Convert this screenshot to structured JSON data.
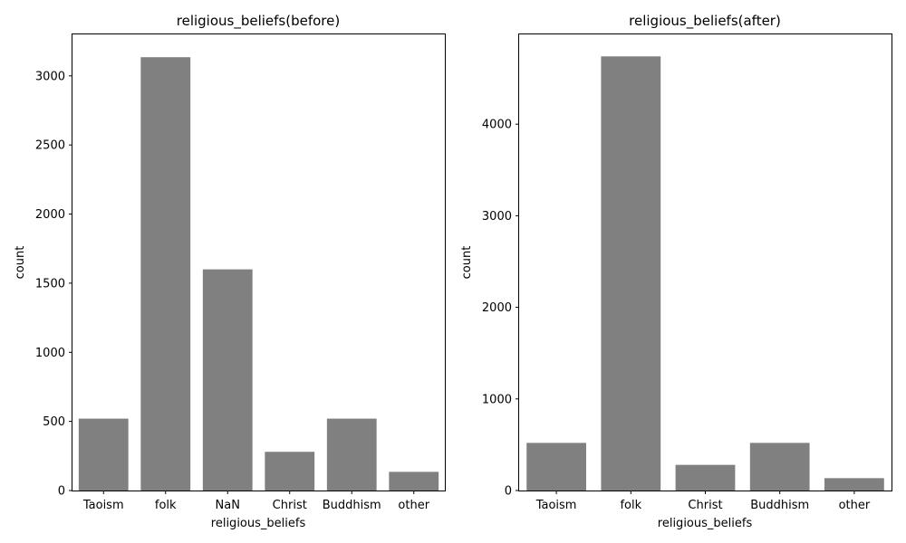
{
  "chart_data": [
    {
      "type": "bar",
      "title": "religious_beliefs(before)",
      "xlabel": "religious_beliefs",
      "ylabel": "count",
      "categories": [
        "Taoism",
        "folk",
        "NaN",
        "Christ",
        "Buddhism",
        "other"
      ],
      "values": [
        520,
        3135,
        1600,
        280,
        520,
        135
      ],
      "ylim": [
        0,
        3300
      ],
      "yticks": [
        0,
        500,
        1000,
        1500,
        2000,
        2500,
        3000
      ],
      "bar_color": "#808080",
      "grid": false
    },
    {
      "type": "bar",
      "title": "religious_beliefs(after)",
      "xlabel": "religious_beliefs",
      "ylabel": "count",
      "categories": [
        "Taoism",
        "folk",
        "Christ",
        "Buddhism",
        "other"
      ],
      "values": [
        520,
        4740,
        280,
        520,
        135
      ],
      "ylim": [
        0,
        4980
      ],
      "yticks": [
        0,
        1000,
        2000,
        3000,
        4000
      ],
      "bar_color": "#808080",
      "grid": false
    }
  ]
}
